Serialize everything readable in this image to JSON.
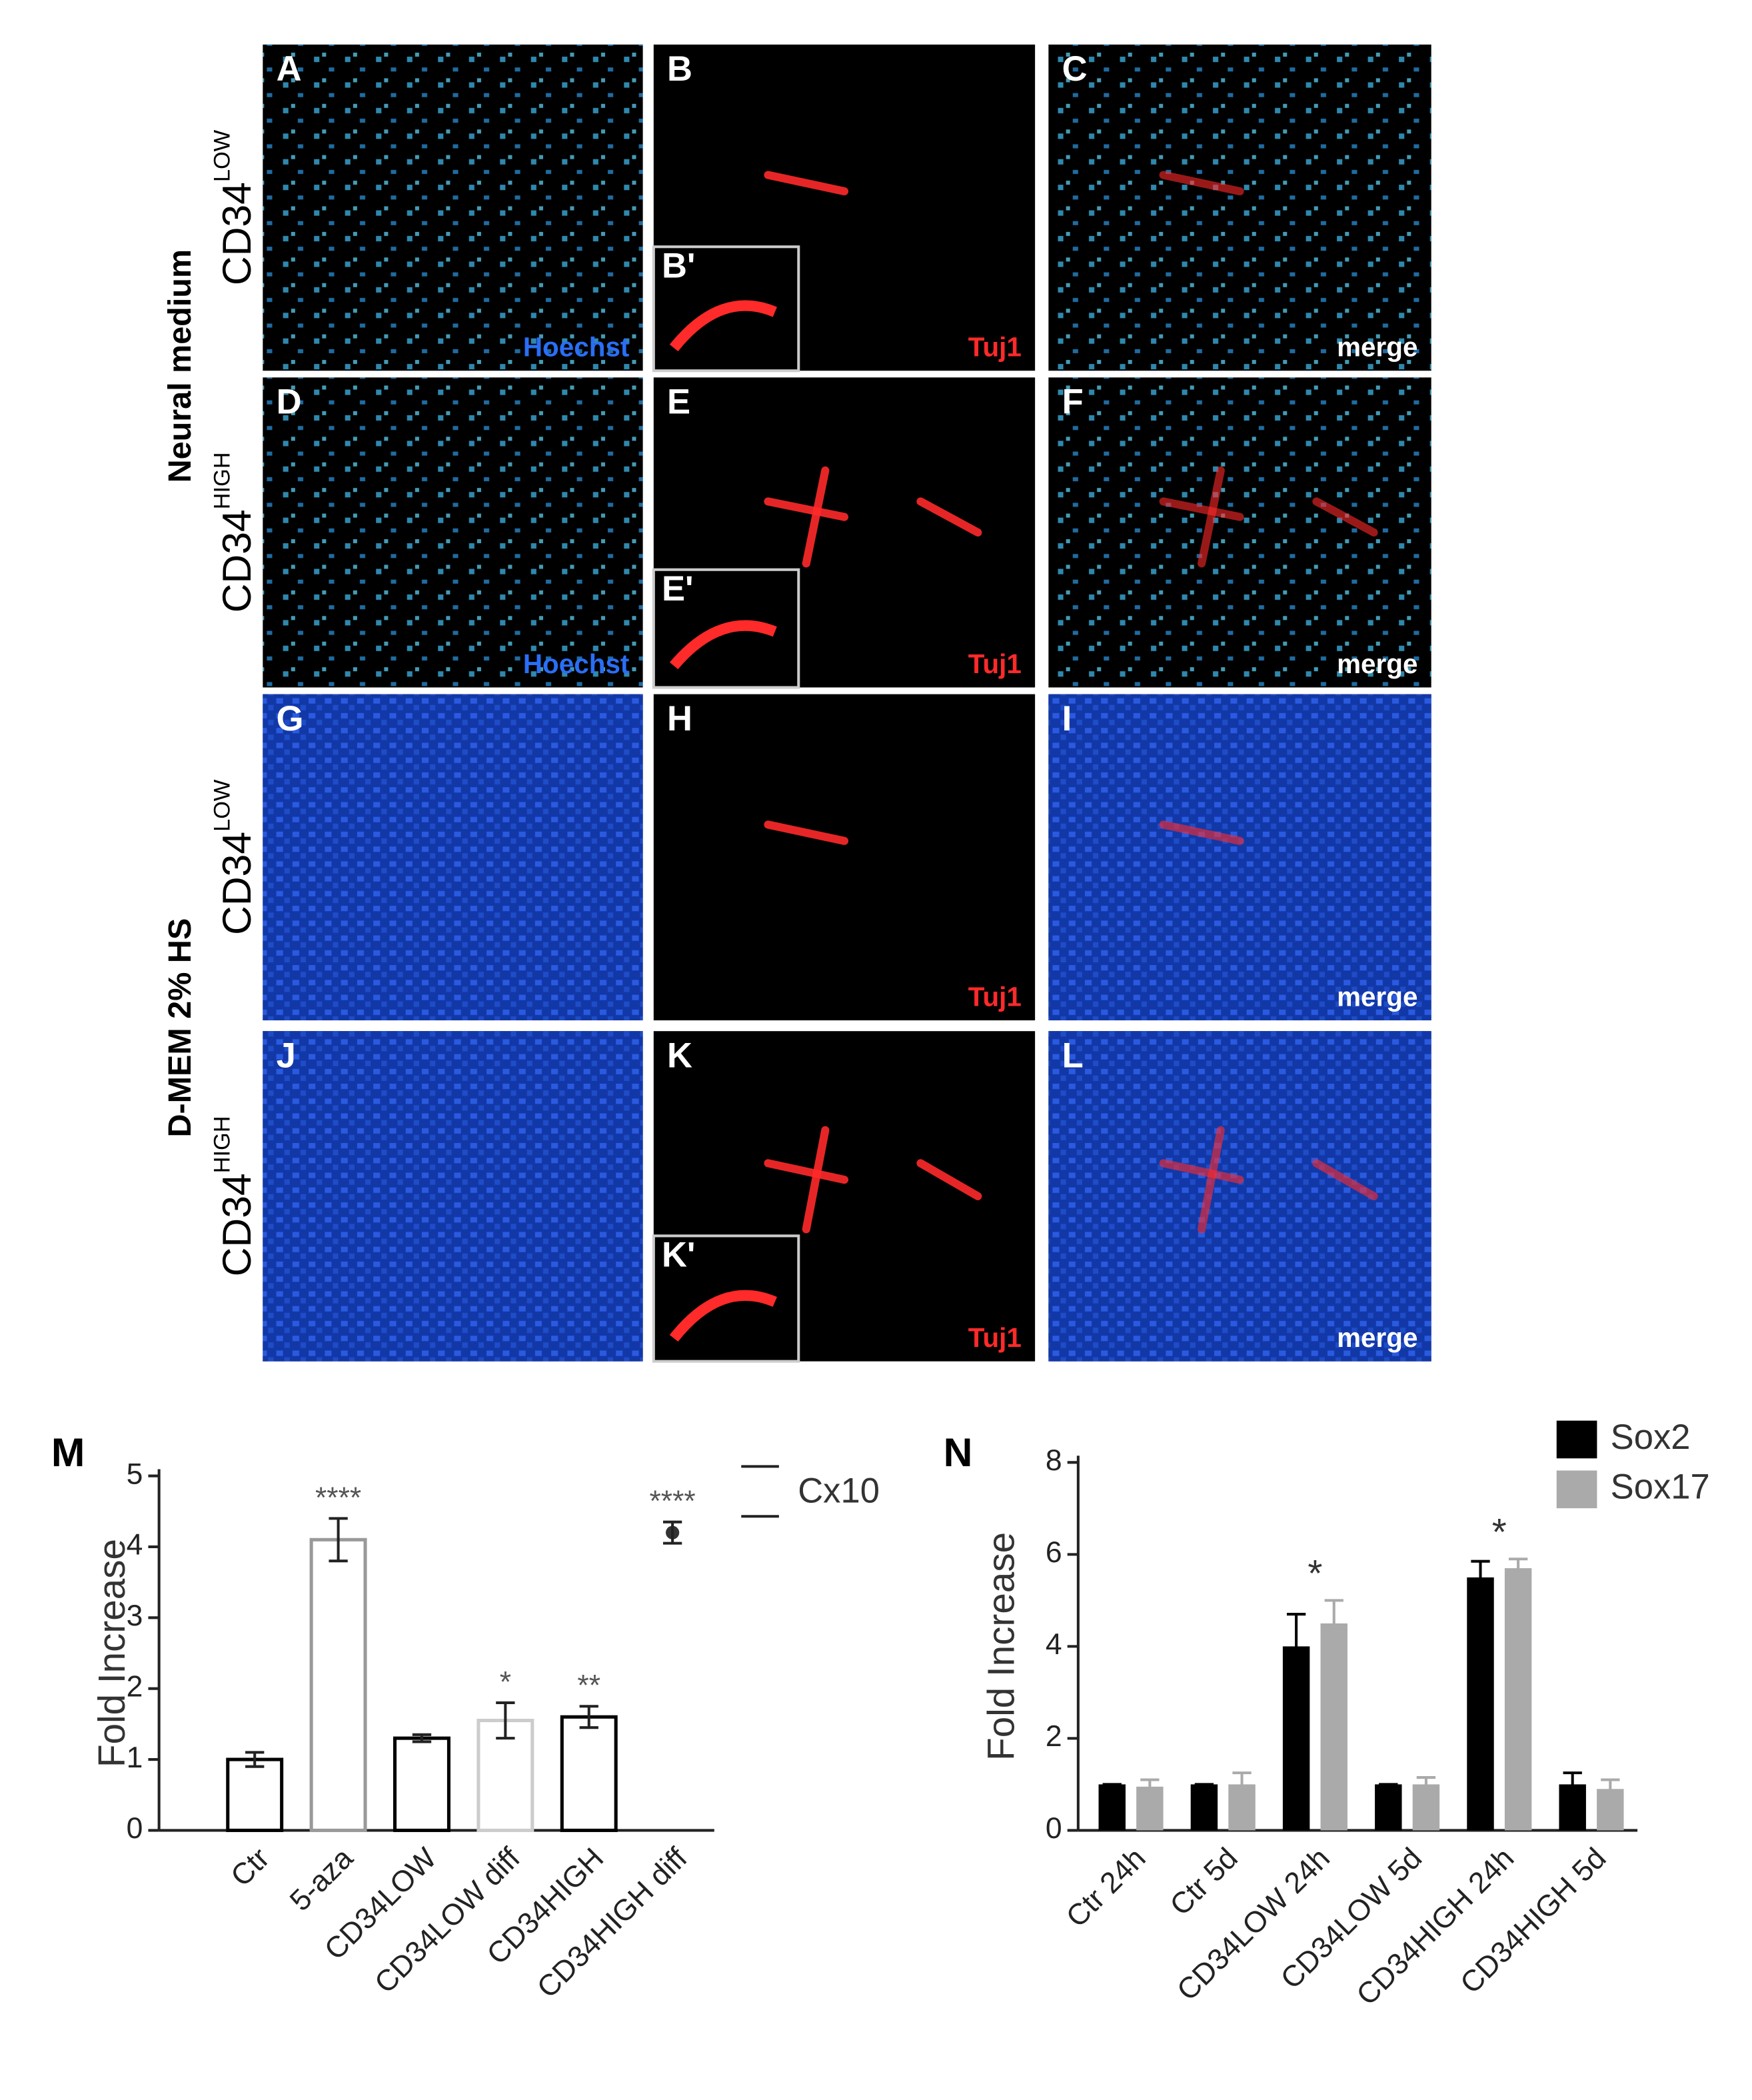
{
  "panels": [
    {
      "letter": "A",
      "caption": "Hoechst"
    },
    {
      "letter": "B",
      "caption": "Tuj1",
      "inset": "B'"
    },
    {
      "letter": "C",
      "caption": "merge"
    },
    {
      "letter": "D",
      "caption": "Hoechst"
    },
    {
      "letter": "E",
      "caption": "Tuj1",
      "inset": "E'"
    },
    {
      "letter": "F",
      "caption": "merge"
    },
    {
      "letter": "G"
    },
    {
      "letter": "H",
      "caption": "Tuj1"
    },
    {
      "letter": "I",
      "caption": "merge"
    },
    {
      "letter": "J"
    },
    {
      "letter": "K",
      "caption": "Tuj1",
      "inset": "K'"
    },
    {
      "letter": "L",
      "caption": "merge"
    }
  ],
  "rows": [
    {
      "name": "CD34",
      "sup": "LOW"
    },
    {
      "name": "CD34",
      "sup": "HIGH"
    },
    {
      "name": "CD34",
      "sup": "LOW"
    },
    {
      "name": "CD34",
      "sup": "HIGH"
    }
  ],
  "groups": [
    "Neural medium",
    "D-MEM 2% HS"
  ],
  "chart_data": [
    {
      "type": "bar",
      "panel": "M",
      "y_label": "Fold Increase",
      "name": "Cx10",
      "categories": [
        "Ctr",
        "5-aza",
        "CD34LOW",
        "CD34LOW diff",
        "CD34HIGH",
        "CD34HIGH diff"
      ],
      "values": [
        1.0,
        4.1,
        1.3,
        1.55,
        1.6,
        4.2
      ],
      "errors": [
        0.1,
        0.3,
        0.05,
        0.25,
        0.15,
        0.15
      ],
      "edge_colors": [
        "#000000",
        "#999999",
        "#000000",
        "#cccccc",
        "#000000",
        null
      ],
      "annotations": [
        null,
        "****",
        null,
        "*",
        "**",
        "****"
      ],
      "ylim": [
        0,
        5
      ],
      "yticks": [
        0,
        1,
        2,
        3,
        4,
        5
      ]
    },
    {
      "type": "grouped_bar",
      "panel": "N",
      "y_label": "Fold Increase",
      "categories": [
        "Ctr 24h",
        "Ctr 5d",
        "CD34LOW 24h",
        "CD34LOW 5d",
        "CD34HIGH 24h",
        "CD34HIGH 5d"
      ],
      "series": [
        {
          "name": "Sox2",
          "color": "#000000",
          "values": [
            1,
            1,
            4,
            1,
            5.5,
            1
          ],
          "errors": [
            0,
            0,
            0.7,
            0,
            0.35,
            0.25
          ]
        },
        {
          "name": "Sox17",
          "color": "#aaaaaa",
          "values": [
            0.95,
            1,
            4.5,
            1,
            5.7,
            0.9
          ],
          "errors": [
            0.15,
            0.25,
            0.5,
            0.15,
            0.2,
            0.2
          ]
        }
      ],
      "annotations": [
        null,
        null,
        "*",
        null,
        "*",
        null
      ],
      "ylim": [
        0,
        8
      ],
      "yticks": [
        0,
        2,
        4,
        6,
        8
      ]
    }
  ]
}
